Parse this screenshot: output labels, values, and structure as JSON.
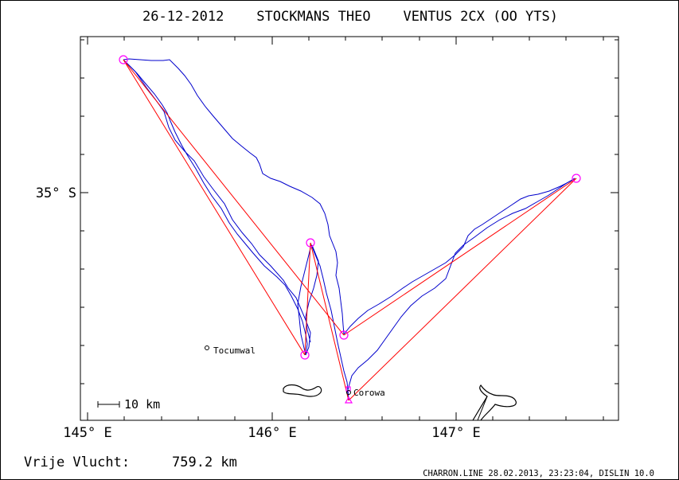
{
  "title": "26-12-2012    STOCKMANS THEO    VENTUS 2CX (OO YTS)",
  "axes": {
    "x_ticks": [
      "145° E",
      "146° E",
      "147° E"
    ],
    "y_ticks": [
      "35° S"
    ]
  },
  "places": [
    {
      "name": "Tocumwal"
    },
    {
      "name": "Corowa"
    }
  ],
  "scale_bar": {
    "label": "10 km"
  },
  "footer": {
    "flight_label": "Vrije Vlucht:",
    "flight_value": "759.2 km",
    "credit": "CHARRON.LINE 28.02.2013, 23:23:04, DISLIN 10.0"
  },
  "colors": {
    "track": "#0000cc",
    "task": "#ff0000",
    "turnpoint": "#ff00ff",
    "axis": "#000000"
  }
}
